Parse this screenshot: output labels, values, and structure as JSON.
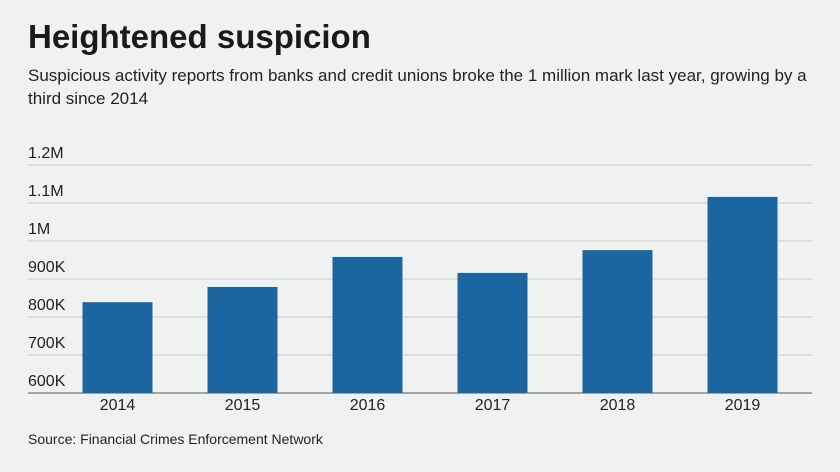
{
  "chart_data": {
    "type": "bar",
    "title": "Heightened suspicion",
    "subtitle": "Suspicious activity reports from banks and credit unions broke the 1 million mark last year, growing by a third since 2014",
    "source": "Source: Financial Crimes Enforcement Network",
    "categories": [
      "2014",
      "2015",
      "2016",
      "2017",
      "2018",
      "2019"
    ],
    "values": [
      839000,
      879000,
      958000,
      916000,
      976000,
      1116000
    ],
    "color": "#1b66a0",
    "ylim": [
      600000,
      1200000
    ],
    "yticks": [
      {
        "value": 600000,
        "label": "600K"
      },
      {
        "value": 700000,
        "label": "700K"
      },
      {
        "value": 800000,
        "label": "800K"
      },
      {
        "value": 900000,
        "label": "900K"
      },
      {
        "value": 1000000,
        "label": "1M"
      },
      {
        "value": 1100000,
        "label": "1.1M"
      },
      {
        "value": 1200000,
        "label": "1.2M"
      }
    ],
    "grid": true
  }
}
